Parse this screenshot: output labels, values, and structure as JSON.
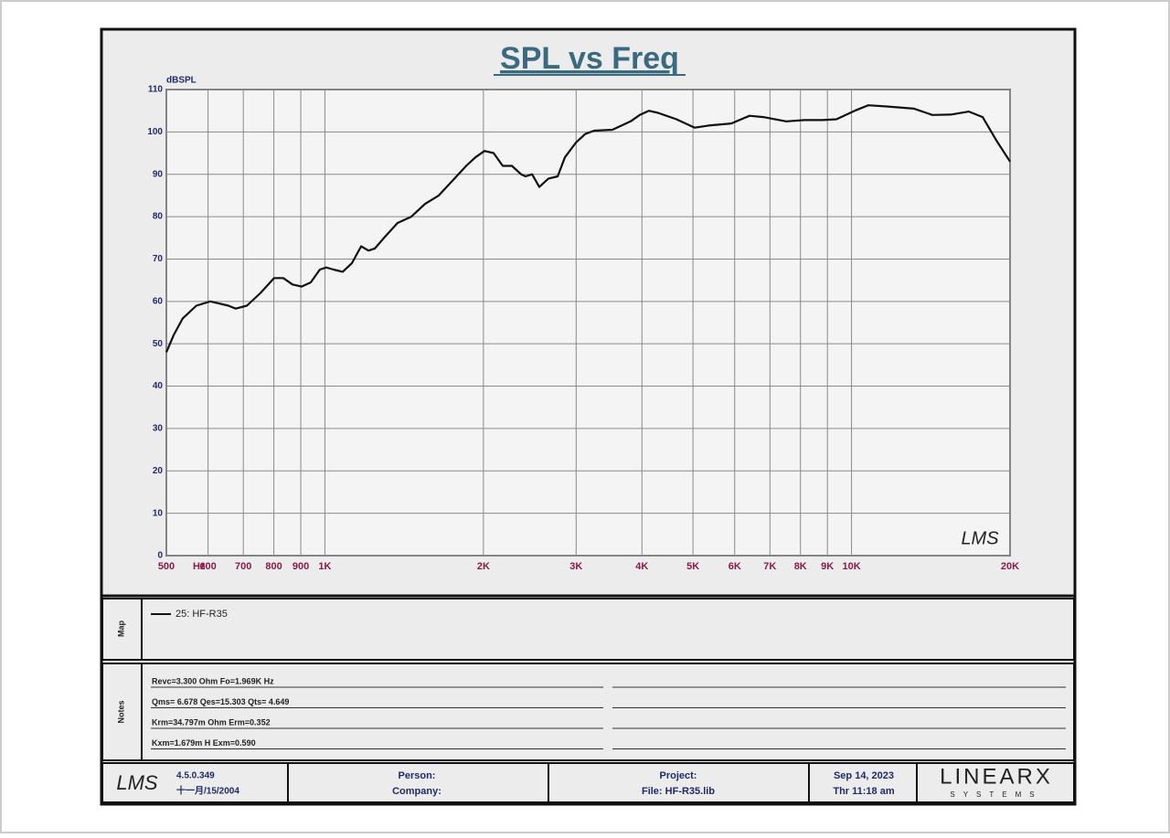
{
  "chart_data": {
    "type": "line",
    "title": "SPL vs Freq",
    "y_label": "dBSPL",
    "x_unit": "Hz",
    "watermark": "LMS",
    "x": [
      500,
      516,
      537,
      570,
      606,
      656,
      677,
      711,
      755,
      801,
      834,
      868,
      903,
      940,
      978,
      1006,
      1039,
      1081,
      1125,
      1172,
      1210,
      1244,
      1295,
      1374,
      1459,
      1549,
      1645,
      1747,
      1855,
      1931,
      2009,
      2091,
      2176,
      2265,
      2358,
      2405,
      2474,
      2554,
      2658,
      2767,
      2856,
      2997,
      3119,
      3246,
      3515,
      3807,
      3962,
      4124,
      4292,
      4650,
      5037,
      5349,
      5911,
      6403,
      6797,
      7514,
      8139,
      8815,
      9363,
      10139,
      10764,
      11661,
      13146,
      14240,
      15425,
      16706,
      17741,
      18836,
      20000
    ],
    "series": [
      {
        "name": "25: HF-R35",
        "color": "#111111",
        "values": [
          48,
          52,
          56,
          59,
          60,
          59,
          58.3,
          59,
          62,
          65.5,
          65.5,
          64,
          63.5,
          64.5,
          67.5,
          68,
          67.5,
          67,
          69,
          73,
          72,
          72.5,
          75,
          78.5,
          80,
          83,
          85,
          88.5,
          92,
          94,
          95.5,
          95,
          92,
          92,
          90,
          89.5,
          90,
          87,
          89,
          89.5,
          94,
          97.5,
          99.5,
          100.3,
          100.5,
          102.5,
          104,
          105,
          104.5,
          103,
          101,
          101.5,
          102,
          103.8,
          103.5,
          102.5,
          102.8,
          102.8,
          103,
          105,
          106.3,
          106,
          105.5,
          104,
          104.1,
          104.8,
          103.5,
          98,
          93
        ]
      }
    ],
    "xlim": [
      500,
      20000
    ],
    "ylim": [
      0,
      110
    ],
    "log_x": true,
    "grid": true,
    "xticks": [
      500,
      600,
      700,
      800,
      900,
      {
        "value": 1000,
        "label": "1K"
      },
      {
        "value": 2000,
        "label": "2K"
      },
      {
        "value": 3000,
        "label": "3K"
      },
      {
        "value": 4000,
        "label": "4K"
      },
      {
        "value": 5000,
        "label": "5K"
      },
      {
        "value": 6000,
        "label": "6K"
      },
      {
        "value": 7000,
        "label": "7K"
      },
      {
        "value": 8000,
        "label": "8K"
      },
      {
        "value": 9000,
        "label": "9K"
      },
      {
        "value": 10000,
        "label": "10K"
      },
      {
        "value": 20000,
        "label": "20K"
      }
    ],
    "yticks": [
      0,
      10,
      20,
      30,
      40,
      50,
      60,
      70,
      80,
      90,
      100,
      110
    ]
  },
  "map": {
    "label": "Map"
  },
  "notes": {
    "label": "Notes",
    "lines": [
      "Revc=3.300 Ohm  Fo=1.969K Hz",
      "Qms= 6.678  Qes=15.303  Qts= 4.649",
      "Krm=34.797m Ohm  Erm=0.352",
      "Kxm=1.679m H  Exm=0.590"
    ]
  },
  "footer": {
    "logo": "LMS",
    "version": "4.5.0.349",
    "build_date": "十一月/15/2004",
    "person": "Person:",
    "company": "Company:",
    "project": "Project:",
    "file": "File: HF-R35.lib",
    "date": "Sep 14, 2023",
    "time": "Thr 11:18 am",
    "brand": "LINEARX",
    "brand_sub": "SYSTEMS"
  }
}
